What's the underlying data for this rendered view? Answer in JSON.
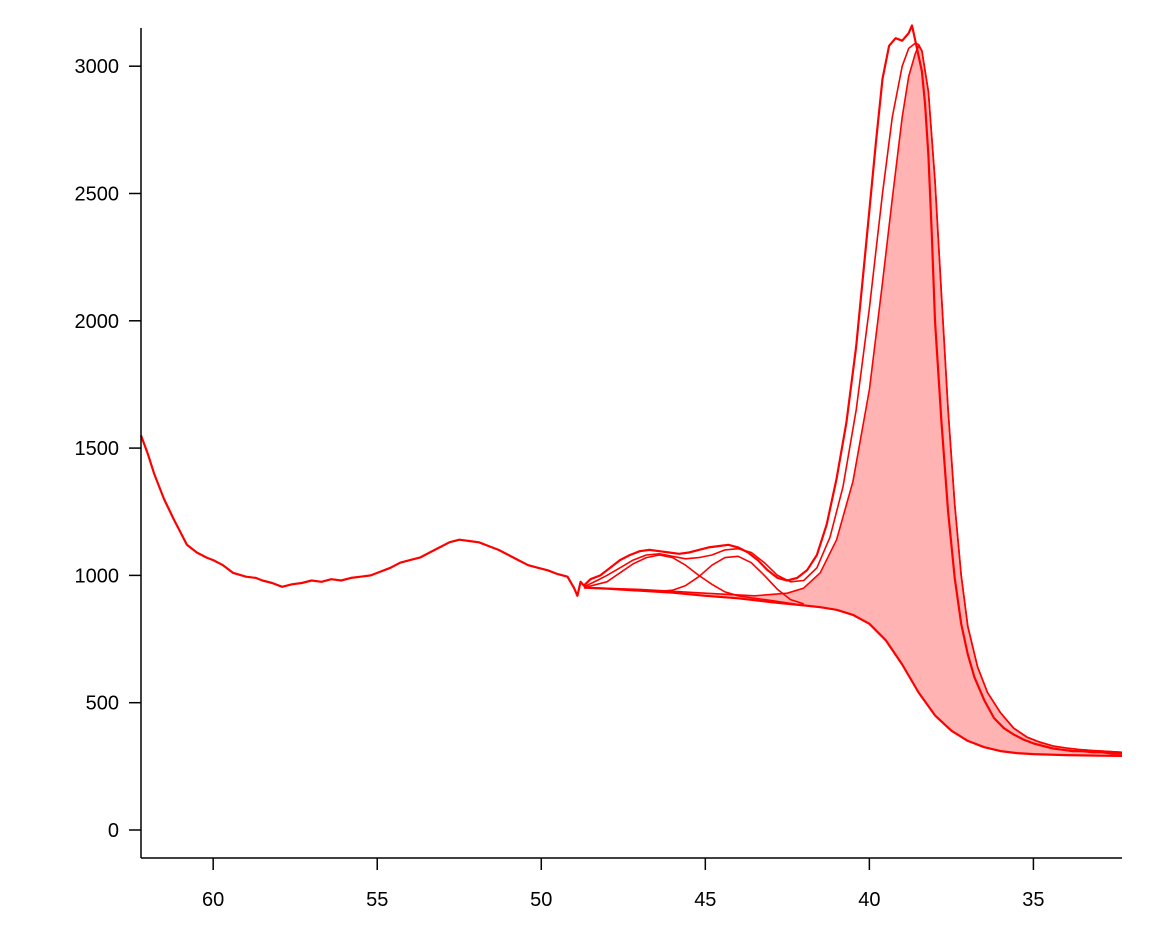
{
  "chart_data": {
    "type": "line",
    "title": "",
    "xlabel": "",
    "ylabel": "",
    "x_reversed": true,
    "xlim": [
      62.2,
      32.3
    ],
    "ylim": [
      -110,
      3150
    ],
    "x_ticks": [
      60,
      55,
      50,
      45,
      40,
      35
    ],
    "x_tick_labels": [
      "60",
      "55",
      "50",
      "45",
      "40",
      "35"
    ],
    "y_ticks": [
      0,
      500,
      1000,
      1500,
      2000,
      2500,
      3000
    ],
    "y_tick_labels": [
      "0",
      "500",
      "1000",
      "1500",
      "2000",
      "2500",
      "3000"
    ],
    "grid": false,
    "legend": "none",
    "colors": {
      "line": "#ff0000",
      "fill": "#ffb3b3",
      "axis": "#000000"
    },
    "series": [
      {
        "role": "measured",
        "x": [
          62.2,
          62.0,
          61.8,
          61.5,
          61.2,
          61.0,
          60.8,
          60.5,
          60.2,
          60.0,
          59.7,
          59.4,
          59.0,
          58.7,
          58.5,
          58.2,
          57.9,
          57.6,
          57.3,
          57.0,
          56.7,
          56.4,
          56.1,
          55.8,
          55.5,
          55.2,
          54.9,
          54.6,
          54.3,
          54.0,
          53.7,
          53.4,
          53.1,
          52.8,
          52.5,
          52.2,
          51.9,
          51.6,
          51.3,
          51.0,
          50.7,
          50.4,
          50.1,
          49.8,
          49.5,
          49.2,
          49.0,
          48.9,
          48.8,
          48.7,
          48.5,
          48.2,
          47.9,
          47.6,
          47.3,
          47.0,
          46.7,
          46.4,
          46.1,
          45.8,
          45.5,
          45.2,
          44.9,
          44.6,
          44.3,
          44.0,
          43.7,
          43.4,
          43.1,
          42.8,
          42.5,
          42.2,
          41.9,
          41.6,
          41.3,
          41.0,
          40.7,
          40.4,
          40.1,
          39.8,
          39.6,
          39.4,
          39.2,
          39.0,
          38.8,
          38.7,
          38.6,
          38.5,
          38.4,
          38.3,
          38.2,
          38.1,
          38.0,
          37.8,
          37.6,
          37.4,
          37.2,
          37.0,
          36.8,
          36.5,
          36.2,
          35.9,
          35.6,
          35.3,
          35.0,
          34.7,
          34.4,
          34.1,
          33.8,
          33.5,
          33.2,
          32.9,
          32.6,
          32.3
        ],
        "y": [
          1550,
          1480,
          1400,
          1300,
          1220,
          1170,
          1120,
          1090,
          1070,
          1060,
          1040,
          1010,
          995,
          990,
          980,
          970,
          955,
          965,
          970,
          980,
          975,
          985,
          980,
          990,
          995,
          1000,
          1015,
          1030,
          1050,
          1060,
          1070,
          1090,
          1110,
          1130,
          1140,
          1135,
          1130,
          1115,
          1100,
          1080,
          1060,
          1040,
          1030,
          1020,
          1005,
          995,
          950,
          920,
          975,
          960,
          985,
          1000,
          1030,
          1060,
          1080,
          1095,
          1100,
          1095,
          1090,
          1085,
          1090,
          1100,
          1110,
          1115,
          1120,
          1110,
          1090,
          1060,
          1020,
          990,
          980,
          990,
          1020,
          1080,
          1200,
          1380,
          1600,
          1900,
          2300,
          2700,
          2950,
          3080,
          3110,
          3100,
          3130,
          3160,
          3100,
          3040,
          2980,
          2850,
          2650,
          2350,
          2000,
          1600,
          1250,
          990,
          810,
          690,
          600,
          510,
          440,
          400,
          375,
          355,
          340,
          330,
          320,
          315,
          310,
          310,
          305,
          305,
          300,
          300
        ]
      },
      {
        "role": "fit-envelope",
        "x": [
          48.7,
          48.3,
          48.0,
          47.6,
          47.2,
          46.8,
          46.4,
          46.0,
          45.6,
          45.2,
          44.8,
          44.4,
          44.0,
          43.6,
          43.2,
          42.8,
          42.4,
          42.0,
          41.6,
          41.2,
          40.8,
          40.4,
          40.0,
          39.6,
          39.3,
          39.0,
          38.8,
          38.6,
          38.5,
          38.4,
          38.2,
          38.0,
          37.8,
          37.6,
          37.4,
          37.2,
          37.0,
          36.7,
          36.4,
          36.0,
          35.6,
          35.2,
          34.8,
          34.4,
          34.0,
          33.6,
          33.2,
          32.8,
          32.3
        ],
        "y": [
          955,
          980,
          1000,
          1030,
          1060,
          1080,
          1085,
          1075,
          1065,
          1070,
          1080,
          1100,
          1105,
          1090,
          1050,
          1000,
          975,
          980,
          1030,
          1150,
          1350,
          1650,
          2050,
          2500,
          2800,
          3000,
          3070,
          3090,
          3085,
          3060,
          2900,
          2550,
          2100,
          1650,
          1280,
          1000,
          800,
          640,
          540,
          460,
          400,
          365,
          345,
          330,
          322,
          316,
          312,
          309,
          305
        ]
      },
      {
        "role": "background",
        "x": [
          48.7,
          48.0,
          47.0,
          46.0,
          45.0,
          44.0,
          43.0,
          42.0,
          41.5,
          41.0,
          40.5,
          40.0,
          39.5,
          39.0,
          38.5,
          38.0,
          37.5,
          37.0,
          36.5,
          36.0,
          35.5,
          35.0,
          34.5,
          34.0,
          33.5,
          33.0,
          32.3
        ],
        "y": [
          952,
          948,
          940,
          932,
          920,
          910,
          895,
          882,
          875,
          865,
          845,
          810,
          745,
          650,
          540,
          450,
          390,
          350,
          325,
          310,
          302,
          298,
          296,
          294,
          293,
          292,
          291
        ]
      },
      {
        "role": "component-peak-1",
        "x": [
          48.7,
          48.0,
          47.6,
          47.2,
          46.8,
          46.4,
          46.0,
          45.6,
          45.2,
          44.8,
          44.4,
          44.0,
          43.6,
          43.2,
          42.8,
          42.4,
          42.0
        ],
        "y": [
          952,
          975,
          1010,
          1045,
          1070,
          1080,
          1070,
          1040,
          1000,
          965,
          935,
          920,
          912,
          905,
          898,
          890,
          882
        ]
      },
      {
        "role": "component-peak-2",
        "x": [
          46.5,
          46.0,
          45.6,
          45.2,
          44.8,
          44.4,
          44.0,
          43.6,
          43.2,
          42.8,
          42.4,
          42.0
        ],
        "y": [
          936,
          942,
          960,
          995,
          1040,
          1070,
          1075,
          1050,
          1000,
          945,
          905,
          888
        ]
      },
      {
        "role": "component-main-peak",
        "x": [
          48.7,
          47.0,
          45.0,
          43.5,
          42.5,
          42.0,
          41.5,
          41.0,
          40.5,
          40.0,
          39.6,
          39.3,
          39.0,
          38.8,
          38.6,
          38.5,
          38.4,
          38.2,
          38.0,
          37.8,
          37.6,
          37.4,
          37.2,
          37.0,
          36.7,
          36.4,
          36.0,
          35.6,
          35.2,
          34.8,
          34.4,
          34.0,
          33.6,
          33.2,
          32.8,
          32.3
        ],
        "y": [
          952,
          945,
          930,
          920,
          930,
          950,
          1010,
          1140,
          1370,
          1730,
          2150,
          2480,
          2800,
          2960,
          3050,
          3080,
          3060,
          2900,
          2550,
          2100,
          1650,
          1280,
          1000,
          800,
          640,
          540,
          460,
          400,
          365,
          345,
          330,
          322,
          316,
          312,
          309,
          305
        ]
      }
    ]
  }
}
